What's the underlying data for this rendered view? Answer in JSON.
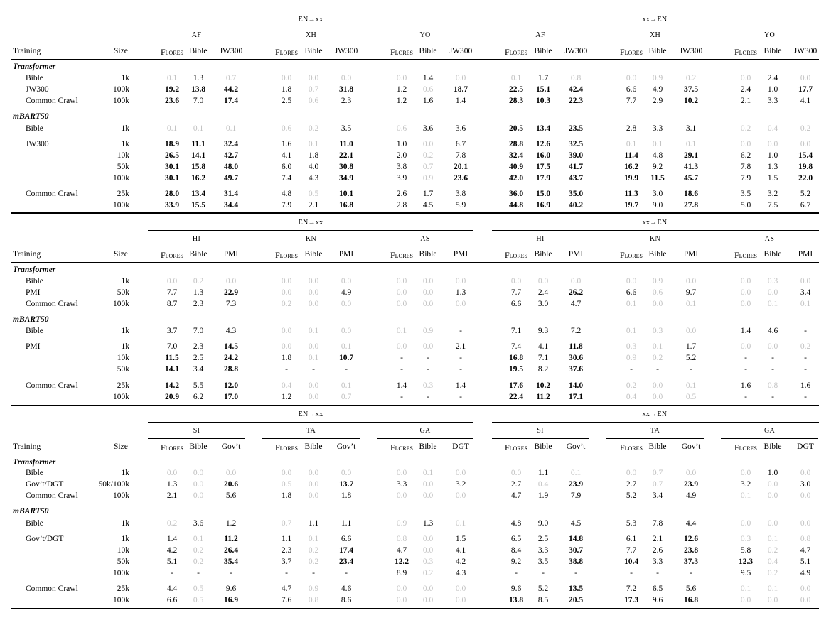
{
  "headers": {
    "training": "Training",
    "size": "Size",
    "direction_en_xx": "EN→xx",
    "direction_xx_en": "xx→EN"
  },
  "blocks": [
    {
      "languages": [
        "AF",
        "XH",
        "YO"
      ],
      "columns": [
        "Flores",
        "Bible",
        "JW300",
        "Flores",
        "Bible",
        "JW300",
        "Flores",
        "Bible",
        "JW300",
        "Flores",
        "Bible",
        "JW300",
        "Flores",
        "Bible",
        "JW300",
        "Flores",
        "Bible",
        "JW300"
      ],
      "sections": [
        {
          "title": "Transformer",
          "rows": [
            {
              "name": "Bible",
              "size": "1k",
              "cells": [
                "f0.1",
                "1.3",
                "f0.7",
                "f0.0",
                "f0.0",
                "f0.0",
                "f0.0",
                "1.4",
                "f0.0",
                "f0.1",
                "1.7",
                "f0.8",
                "f0.0",
                "f0.9",
                "f0.2",
                "f0.0",
                "2.4",
                "f0.0"
              ]
            },
            {
              "name": "JW300",
              "size": "100k",
              "cells": [
                "b19.2",
                "b13.8",
                "b44.2",
                "1.8",
                "f0.7",
                "b31.8",
                "1.2",
                "f0.6",
                "b18.7",
                "b22.5",
                "b15.1",
                "b42.4",
                "6.6",
                "4.9",
                "b37.5",
                "2.4",
                "1.0",
                "b17.7"
              ]
            },
            {
              "name": "Common Crawl",
              "size": "100k",
              "cells": [
                "b23.6",
                "7.0",
                "b17.4",
                "2.5",
                "f0.6",
                "2.3",
                "1.2",
                "1.6",
                "1.4",
                "b28.3",
                "b10.3",
                "b22.3",
                "7.7",
                "2.9",
                "b10.2",
                "2.1",
                "3.3",
                "4.1"
              ]
            }
          ]
        },
        {
          "title": "mBART50",
          "rows": [
            {
              "name": "Bible",
              "size": "1k",
              "cells": [
                "f0.1",
                "f0.1",
                "f0.1",
                "f0.6",
                "f0.2",
                "3.5",
                "f0.6",
                "3.6",
                "3.6",
                "b20.5",
                "b13.4",
                "b23.5",
                "2.8",
                "3.3",
                "3.1",
                "f0.2",
                "f0.4",
                "f0.2"
              ]
            },
            {
              "name": "JW300",
              "size": "1k",
              "cells": [
                "b18.9",
                "b11.1",
                "b32.4",
                "1.6",
                "f0.1",
                "b11.0",
                "1.0",
                "f0.0",
                "6.7",
                "b28.8",
                "b12.6",
                "b32.5",
                "f0.1",
                "f0.1",
                "f0.1",
                "f0.0",
                "f0.0",
                "f0.0"
              ]
            },
            {
              "name": "",
              "size": "10k",
              "cells": [
                "b26.5",
                "b14.1",
                "b42.7",
                "4.1",
                "1.8",
                "b22.1",
                "2.0",
                "f0.2",
                "7.8",
                "b32.4",
                "b16.0",
                "b39.0",
                "b11.4",
                "4.8",
                "b29.1",
                "6.2",
                "1.0",
                "b15.4"
              ]
            },
            {
              "name": "",
              "size": "50k",
              "cells": [
                "b30.1",
                "b15.8",
                "b48.0",
                "6.0",
                "4.0",
                "b30.8",
                "3.8",
                "f0.7",
                "b20.1",
                "b40.9",
                "b17.5",
                "b41.7",
                "b16.2",
                "9.2",
                "b41.3",
                "7.8",
                "1.3",
                "b19.8"
              ]
            },
            {
              "name": "",
              "size": "100k",
              "cells": [
                "b30.1",
                "b16.2",
                "b49.7",
                "7.4",
                "4.3",
                "b34.9",
                "3.9",
                "f0.9",
                "b23.6",
                "b42.0",
                "b17.9",
                "b43.7",
                "b19.9",
                "b11.5",
                "b45.7",
                "7.9",
                "1.5",
                "b22.0"
              ]
            },
            {
              "name": "Common Crawl",
              "size": "25k",
              "cells": [
                "b28.0",
                "b13.4",
                "b31.4",
                "4.8",
                "f0.5",
                "b10.1",
                "2.6",
                "1.7",
                "3.8",
                "b36.0",
                "b15.0",
                "b35.0",
                "b11.3",
                "3.0",
                "b18.6",
                "3.5",
                "3.2",
                "5.2"
              ]
            },
            {
              "name": "",
              "size": "100k",
              "cells": [
                "b33.9",
                "b15.5",
                "b34.4",
                "7.9",
                "2.1",
                "b16.8",
                "2.8",
                "4.5",
                "5.9",
                "b44.8",
                "b16.9",
                "b40.2",
                "b19.7",
                "9.0",
                "b27.8",
                "5.0",
                "7.5",
                "6.7"
              ]
            }
          ]
        }
      ]
    },
    {
      "languages": [
        "HI",
        "KN",
        "AS"
      ],
      "columns": [
        "Flores",
        "Bible",
        "PMI",
        "Flores",
        "Bible",
        "PMI",
        "Flores",
        "Bible",
        "PMI",
        "Flores",
        "Bible",
        "PMI",
        "Flores",
        "Bible",
        "PMI",
        "Flores",
        "Bible",
        "PMI"
      ],
      "sections": [
        {
          "title": "Transformer",
          "rows": [
            {
              "name": "Bible",
              "size": "1k",
              "cells": [
                "f0.0",
                "f0.2",
                "f0.0",
                "f0.0",
                "f0.0",
                "f0.0",
                "f0.0",
                "f0.0",
                "f0.0",
                "f0.0",
                "f0.0",
                "f0.0",
                "f0.0",
                "f0.9",
                "f0.0",
                "f0.0",
                "f0.3",
                "f0.0"
              ]
            },
            {
              "name": "PMI",
              "size": "50k",
              "cells": [
                "7.7",
                "1.3",
                "b22.9",
                "f0.0",
                "f0.0",
                "4.9",
                "f0.0",
                "f0.0",
                "1.3",
                "7.7",
                "2.4",
                "b26.2",
                "6.6",
                "f0.6",
                "9.7",
                "f0.0",
                "f0.0",
                "3.4"
              ]
            },
            {
              "name": "Common Crawl",
              "size": "100k",
              "cells": [
                "8.7",
                "2.3",
                "7.3",
                "f0.2",
                "f0.0",
                "f0.0",
                "f0.0",
                "f0.0",
                "f0.0",
                "6.6",
                "3.0",
                "4.7",
                "f0.1",
                "f0.0",
                "f0.1",
                "f0.0",
                "f0.1",
                "f0.1"
              ]
            }
          ]
        },
        {
          "title": "mBART50",
          "rows": [
            {
              "name": "Bible",
              "size": "1k",
              "cells": [
                "3.7",
                "7.0",
                "4.3",
                "f0.0",
                "f0.1",
                "f0.0",
                "f0.1",
                "f0.9",
                "-",
                "7.1",
                "9.3",
                "7.2",
                "f0.1",
                "f0.3",
                "f0.0",
                "1.4",
                "4.6",
                "-"
              ]
            },
            {
              "name": "PMI",
              "size": "1k",
              "cells": [
                "7.0",
                "2.3",
                "b14.5",
                "f0.0",
                "f0.0",
                "f0.1",
                "f0.0",
                "f0.0",
                "2.1",
                "7.4",
                "4.1",
                "b11.8",
                "f0.3",
                "f0.1",
                "1.7",
                "f0.0",
                "f0.0",
                "f0.2"
              ]
            },
            {
              "name": "",
              "size": "10k",
              "cells": [
                "b11.5",
                "2.5",
                "b24.2",
                "1.8",
                "f0.1",
                "b10.7",
                "-",
                "-",
                "-",
                "b16.8",
                "7.1",
                "b30.6",
                "f0.9",
                "f0.2",
                "5.2",
                "-",
                "-",
                "-"
              ]
            },
            {
              "name": "",
              "size": "50k",
              "cells": [
                "b14.1",
                "3.4",
                "b28.8",
                "-",
                "-",
                "-",
                "-",
                "-",
                "-",
                "b19.5",
                "8.2",
                "b37.6",
                "-",
                "-",
                "-",
                "-",
                "-",
                "-"
              ]
            },
            {
              "name": "Common Crawl",
              "size": "25k",
              "cells": [
                "b14.2",
                "5.5",
                "b12.0",
                "f0.4",
                "f0.0",
                "f0.1",
                "1.4",
                "f0.3",
                "1.4",
                "b17.6",
                "b10.2",
                "b14.0",
                "f0.2",
                "f0.0",
                "f0.1",
                "1.6",
                "f0.8",
                "1.6"
              ]
            },
            {
              "name": "",
              "size": "100k",
              "cells": [
                "b20.9",
                "6.2",
                "b17.0",
                "1.2",
                "f0.0",
                "f0.7",
                "-",
                "-",
                "-",
                "b22.4",
                "b11.2",
                "b17.1",
                "f0.4",
                "f0.0",
                "f0.5",
                "-",
                "-",
                "-"
              ]
            }
          ]
        }
      ]
    },
    {
      "languages": [
        "SI",
        "TA",
        "GA"
      ],
      "columns": [
        "Flores",
        "Bible",
        "Gov’t",
        "Flores",
        "Bible",
        "Gov’t",
        "Flores",
        "Bible",
        "DGT",
        "Flores",
        "Bible",
        "Gov’t",
        "Flores",
        "Bible",
        "Gov’t",
        "Flores",
        "Bible",
        "DGT"
      ],
      "sections": [
        {
          "title": "Transformer",
          "rows": [
            {
              "name": "Bible",
              "size": "1k",
              "cells": [
                "f0.0",
                "f0.0",
                "f0.0",
                "f0.0",
                "f0.0",
                "f0.0",
                "f0.0",
                "f0.1",
                "f0.0",
                "f0.0",
                "1.1",
                "f0.1",
                "f0.0",
                "f0.7",
                "f0.0",
                "f0.0",
                "1.0",
                "f0.0"
              ]
            },
            {
              "name": "Gov’t/DGT",
              "size": "50k/100k",
              "cells": [
                "1.3",
                "f0.0",
                "b20.6",
                "f0.5",
                "f0.0",
                "b13.7",
                "3.3",
                "f0.0",
                "3.2",
                "2.7",
                "f0.4",
                "b23.9",
                "2.7",
                "f0.7",
                "b23.9",
                "3.2",
                "f0.0",
                "3.0"
              ]
            },
            {
              "name": "Common Crawl",
              "size": "100k",
              "cells": [
                "2.1",
                "f0.0",
                "5.6",
                "1.8",
                "f0.0",
                "1.8",
                "f0.0",
                "f0.0",
                "f0.0",
                "4.7",
                "1.9",
                "7.9",
                "5.2",
                "3.4",
                "4.9",
                "f0.1",
                "f0.0",
                "f0.0"
              ]
            }
          ]
        },
        {
          "title": "mBART50",
          "rows": [
            {
              "name": "Bible",
              "size": "1k",
              "cells": [
                "f0.2",
                "3.6",
                "1.2",
                "f0.7",
                "1.1",
                "1.1",
                "f0.9",
                "1.3",
                "f0.1",
                "4.8",
                "9.0",
                "4.5",
                "5.3",
                "7.8",
                "4.4",
                "f0.0",
                "f0.0",
                "f0.0"
              ]
            },
            {
              "name": "Gov’t/DGT",
              "size": "1k",
              "cells": [
                "1.4",
                "f0.1",
                "b11.2",
                "1.1",
                "f0.1",
                "6.6",
                "f0.8",
                "f0.0",
                "1.5",
                "6.5",
                "2.5",
                "b14.8",
                "6.1",
                "2.1",
                "b12.6",
                "f0.3",
                "f0.1",
                "f0.8"
              ]
            },
            {
              "name": "",
              "size": "10k",
              "cells": [
                "4.2",
                "f0.2",
                "b26.4",
                "2.3",
                "f0.2",
                "b17.4",
                "4.7",
                "f0.0",
                "4.1",
                "8.4",
                "3.3",
                "b30.7",
                "7.7",
                "2.6",
                "b23.8",
                "5.8",
                "f0.2",
                "4.7"
              ]
            },
            {
              "name": "",
              "size": "50k",
              "cells": [
                "5.1",
                "f0.2",
                "b35.4",
                "3.7",
                "f0.2",
                "b23.4",
                "b12.2",
                "f0.3",
                "4.2",
                "9.2",
                "3.5",
                "b38.8",
                "b10.4",
                "3.3",
                "b37.3",
                "b12.3",
                "f0.4",
                "5.1"
              ]
            },
            {
              "name": "",
              "size": "100k",
              "cells": [
                "-",
                "-",
                "-",
                "-",
                "-",
                "-",
                "8.9",
                "f0.2",
                "4.3",
                "-",
                "-",
                "-",
                "-",
                "-",
                "-",
                "9.5",
                "f0.2",
                "4.9"
              ]
            },
            {
              "name": "Common Crawl",
              "size": "25k",
              "cells": [
                "4.4",
                "f0.5",
                "9.6",
                "4.7",
                "f0.9",
                "4.6",
                "f0.0",
                "f0.0",
                "f0.0",
                "9.6",
                "5.2",
                "b13.5",
                "7.2",
                "6.5",
                "5.6",
                "f0.1",
                "f0.1",
                "f0.0"
              ]
            },
            {
              "name": "",
              "size": "100k",
              "cells": [
                "6.6",
                "f0.5",
                "b16.9",
                "7.6",
                "f0.8",
                "8.6",
                "f0.0",
                "f0.0",
                "f0.0",
                "b13.8",
                "8.5",
                "b20.5",
                "b17.3",
                "9.6",
                "b16.8",
                "f0.0",
                "f0.0",
                "f0.0"
              ]
            }
          ]
        }
      ]
    }
  ]
}
